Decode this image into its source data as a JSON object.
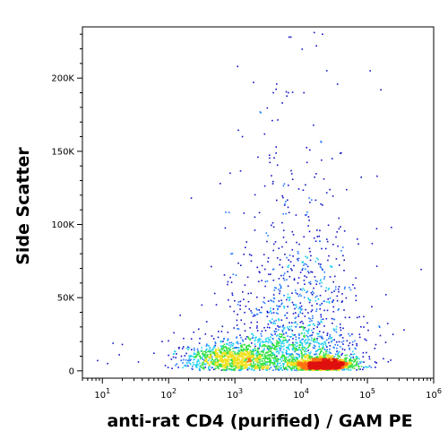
{
  "chart_data": {
    "type": "scatter",
    "subtype": "flow-cytometry-density-dot-plot",
    "title": "",
    "xlabel": "anti-rat CD4 (purified) / GAM PE",
    "ylabel": "Side Scatter",
    "x_scale": "log",
    "xlim": [
      5,
      1000000
    ],
    "ylim": [
      -5000,
      235000
    ],
    "y_scale": "linear",
    "x_ticks": [
      {
        "value": 10,
        "base": "10",
        "exp": "1"
      },
      {
        "value": 100,
        "base": "10",
        "exp": "2"
      },
      {
        "value": 1000,
        "base": "10",
        "exp": "3"
      },
      {
        "value": 10000,
        "base": "10",
        "exp": "4"
      },
      {
        "value": 100000,
        "base": "10",
        "exp": "5"
      },
      {
        "value": 1000000,
        "base": "10",
        "exp": "6"
      }
    ],
    "y_ticks": [
      {
        "value": 0,
        "label": "0"
      },
      {
        "value": 50000,
        "label": "50K"
      },
      {
        "value": 100000,
        "label": "100K"
      },
      {
        "value": 150000,
        "label": "150K"
      },
      {
        "value": 200000,
        "label": "200K"
      }
    ],
    "grid": false,
    "legend": "none",
    "color_scale": [
      "#1010c8",
      "#1e78ff",
      "#20d0f0",
      "#30e040",
      "#f0e020",
      "#ff7010",
      "#e01010"
    ],
    "populations": [
      {
        "name": "",
        "x_log_center": 4.35,
        "x_log_sd": 0.2,
        "y_center": 4000,
        "y_sd": 2500,
        "count": 1600
      },
      {
        "name": "",
        "x_log_center": 2.95,
        "x_log_sd": 0.35,
        "y_center": 8000,
        "y_sd": 5000,
        "count": 900
      },
      {
        "name": "",
        "x_log_center": 3.8,
        "x_log_sd": 0.55,
        "y_center": 12000,
        "y_sd": 9000,
        "count": 900
      },
      {
        "name": "",
        "x_log_center": 3.9,
        "x_log_sd": 0.5,
        "y_center": 45000,
        "y_sd": 30000,
        "count": 650
      },
      {
        "name": "",
        "x_log_center": 3.9,
        "x_log_sd": 0.45,
        "y_center": 130000,
        "y_sd": 45000,
        "count": 90
      }
    ],
    "outliers": [
      [
        8.5,
        7000
      ],
      [
        20,
        18000
      ],
      [
        18,
        11000
      ],
      [
        12,
        5000
      ],
      [
        35,
        6000
      ],
      [
        60,
        12000
      ],
      [
        80,
        20000
      ],
      [
        150,
        38000
      ],
      [
        120,
        26000
      ],
      [
        110,
        8000
      ],
      [
        220,
        118000
      ],
      [
        600,
        128000
      ],
      [
        850,
        135000
      ],
      [
        1100,
        208000
      ],
      [
        1300,
        160000
      ],
      [
        3800,
        190000
      ],
      [
        5200,
        183000
      ],
      [
        6400,
        190000
      ],
      [
        11000,
        190000
      ],
      [
        17000,
        222000
      ],
      [
        21000,
        230000
      ],
      [
        160000,
        192000
      ],
      [
        110000,
        205000
      ],
      [
        140000,
        133000
      ],
      [
        190000,
        52000
      ],
      [
        230000,
        98000
      ],
      [
        88000,
        37000
      ],
      [
        7000,
        228000
      ],
      [
        2000,
        105000
      ],
      [
        1500,
        88000
      ]
    ]
  }
}
